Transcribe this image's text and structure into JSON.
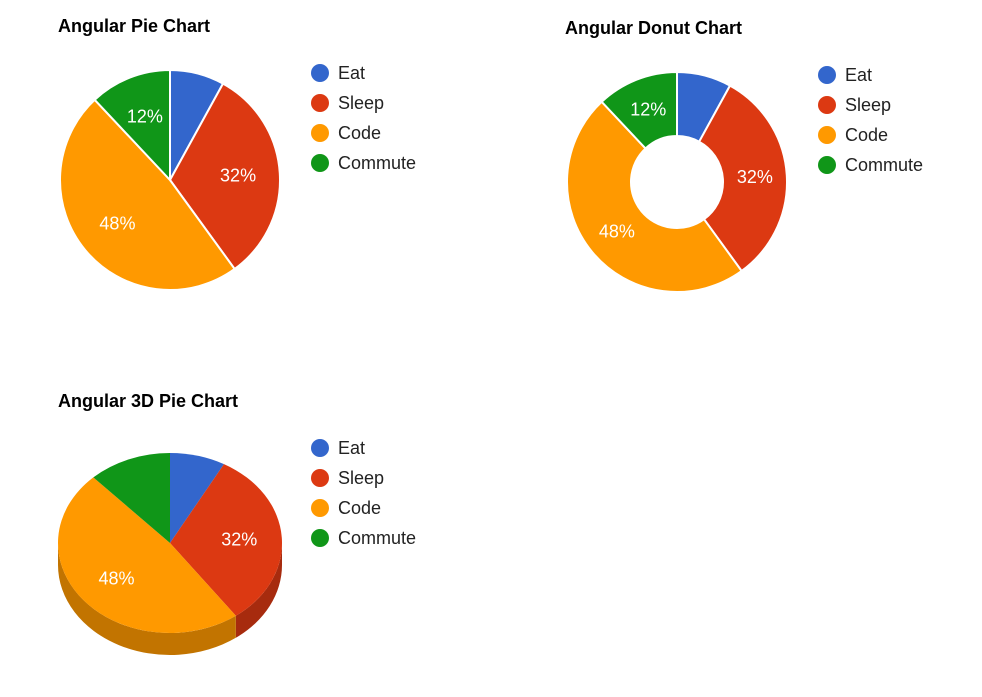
{
  "chart_data": [
    {
      "type": "pie",
      "title": "Angular Pie Chart",
      "categories": [
        "Eat",
        "Sleep",
        "Code",
        "Commute"
      ],
      "values": [
        8,
        32,
        48,
        12
      ],
      "value_labels": [
        "",
        "32%",
        "48%",
        "12%"
      ],
      "colors": [
        "#3366cc",
        "#dc3912",
        "#ff9900",
        "#109618"
      ],
      "legend": "right"
    },
    {
      "type": "pie",
      "variant": "donut",
      "title": "Angular Donut Chart",
      "categories": [
        "Eat",
        "Sleep",
        "Code",
        "Commute"
      ],
      "values": [
        8,
        32,
        48,
        12
      ],
      "value_labels": [
        "",
        "32%",
        "48%",
        "12%"
      ],
      "colors": [
        "#3366cc",
        "#dc3912",
        "#ff9900",
        "#109618"
      ],
      "legend": "right"
    },
    {
      "type": "pie",
      "variant": "3d",
      "title": "Angular 3D Pie Chart",
      "categories": [
        "Eat",
        "Sleep",
        "Code",
        "Commute"
      ],
      "values": [
        8,
        32,
        48,
        12
      ],
      "value_labels": [
        "",
        "32%",
        "48%",
        ""
      ],
      "colors": [
        "#3366cc",
        "#dc3912",
        "#ff9900",
        "#109618"
      ],
      "legend": "right"
    }
  ]
}
